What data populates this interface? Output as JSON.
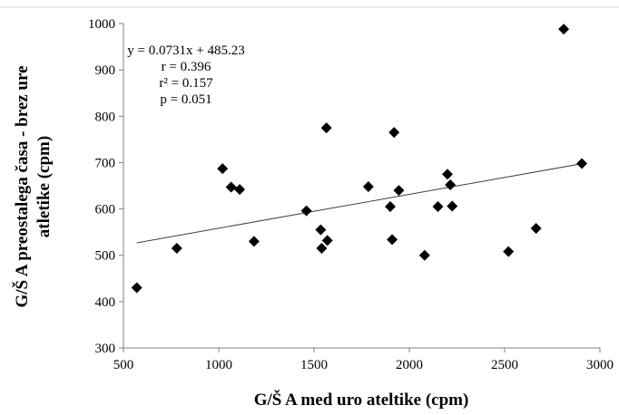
{
  "chart_data": {
    "type": "scatter",
    "xlabel": "G/Š A med uro ateltike (cpm)",
    "ylabel_lines": [
      "G/Š A preostalega časa - brez ure",
      "atletike (cpm)"
    ],
    "xlim": [
      500,
      3000
    ],
    "ylim": [
      300,
      1000
    ],
    "xticks": [
      500,
      1000,
      1500,
      2000,
      2500,
      3000
    ],
    "yticks": [
      300,
      400,
      500,
      600,
      700,
      800,
      900,
      1000
    ],
    "grid": false,
    "marker": "diamond",
    "points": [
      {
        "x": 570,
        "y": 430
      },
      {
        "x": 780,
        "y": 515
      },
      {
        "x": 1020,
        "y": 687
      },
      {
        "x": 1065,
        "y": 647
      },
      {
        "x": 1110,
        "y": 642
      },
      {
        "x": 1185,
        "y": 530
      },
      {
        "x": 1460,
        "y": 596
      },
      {
        "x": 1535,
        "y": 555
      },
      {
        "x": 1540,
        "y": 515
      },
      {
        "x": 1565,
        "y": 775
      },
      {
        "x": 1570,
        "y": 532
      },
      {
        "x": 1785,
        "y": 648
      },
      {
        "x": 1900,
        "y": 605
      },
      {
        "x": 1910,
        "y": 534
      },
      {
        "x": 1920,
        "y": 765
      },
      {
        "x": 1945,
        "y": 640
      },
      {
        "x": 2080,
        "y": 500
      },
      {
        "x": 2150,
        "y": 605
      },
      {
        "x": 2200,
        "y": 675
      },
      {
        "x": 2215,
        "y": 652
      },
      {
        "x": 2225,
        "y": 606
      },
      {
        "x": 2520,
        "y": 508
      },
      {
        "x": 2665,
        "y": 558
      },
      {
        "x": 2810,
        "y": 988
      },
      {
        "x": 2905,
        "y": 698
      }
    ],
    "trendline": {
      "slope": 0.0731,
      "intercept": 485.23,
      "x_range": [
        570,
        2905
      ]
    },
    "annotations": [
      "y = 0.0731x  + 485.23",
      "r = 0.396",
      "r² = 0.157",
      "p = 0.051"
    ]
  }
}
